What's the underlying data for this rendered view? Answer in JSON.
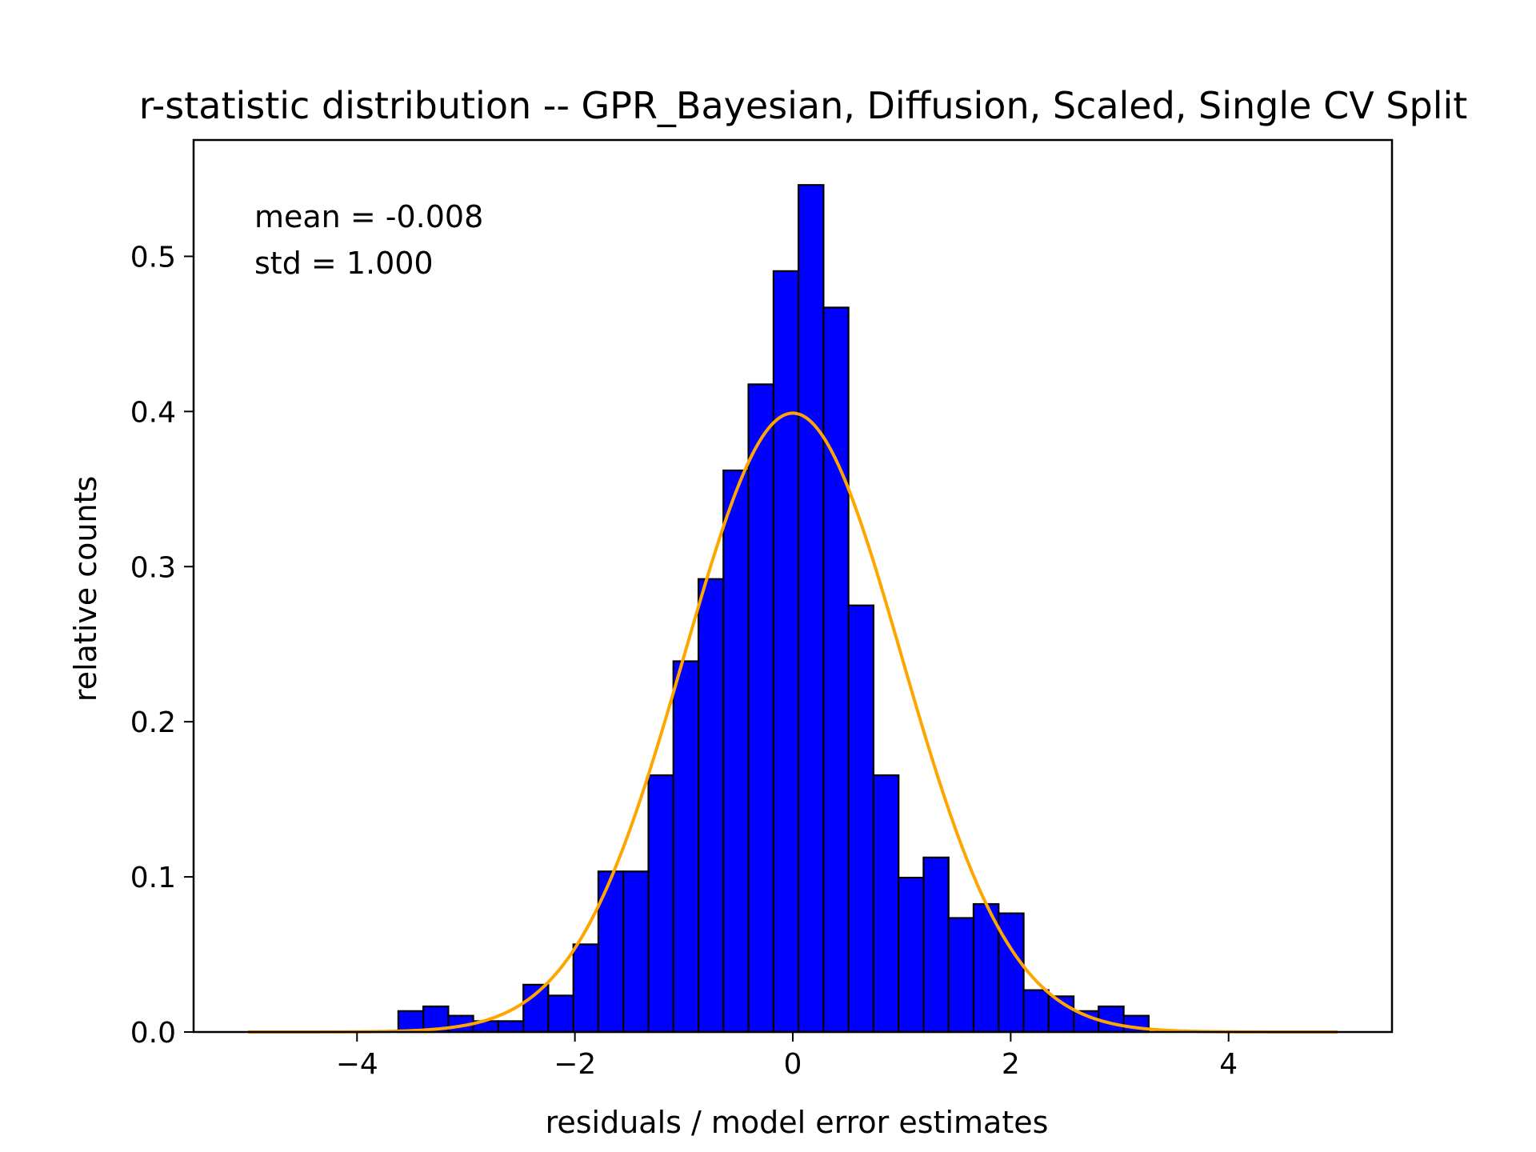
{
  "chart_data": {
    "type": "bar",
    "title": "r-statistic distribution -- GPR_Bayesian, Diffusion, Scaled, Single CV Split",
    "xlabel": "residuals / model error estimates",
    "ylabel": "relative counts",
    "xlim": [
      -5.5,
      5.5
    ],
    "ylim": [
      0,
      0.575
    ],
    "xticks": [
      -4,
      -2,
      0,
      2,
      4
    ],
    "xtick_labels": [
      "−4",
      "−2",
      "0",
      "2",
      "4"
    ],
    "yticks": [
      0.0,
      0.1,
      0.2,
      0.3,
      0.4,
      0.5
    ],
    "ytick_labels": [
      "0.0",
      "0.1",
      "0.2",
      "0.3",
      "0.4",
      "0.5"
    ],
    "annotations": [
      "mean = -0.008",
      "std = 1.000"
    ],
    "histogram": {
      "bar_color": "#0000ff",
      "edge_color": "#000000",
      "bins": [
        {
          "left": -3.621,
          "right": -3.392,
          "value": 0.0135
        },
        {
          "left": -3.392,
          "right": -3.162,
          "value": 0.0165
        },
        {
          "left": -3.162,
          "right": -2.933,
          "value": 0.0105
        },
        {
          "left": -2.933,
          "right": -2.703,
          "value": 0.007
        },
        {
          "left": -2.703,
          "right": -2.473,
          "value": 0.007
        },
        {
          "left": -2.473,
          "right": -2.244,
          "value": 0.0305
        },
        {
          "left": -2.244,
          "right": -2.014,
          "value": 0.0235
        },
        {
          "left": -2.014,
          "right": -1.785,
          "value": 0.0565
        },
        {
          "left": -1.785,
          "right": -1.555,
          "value": 0.1035
        },
        {
          "left": -1.555,
          "right": -1.325,
          "value": 0.1035
        },
        {
          "left": -1.325,
          "right": -1.096,
          "value": 0.1655
        },
        {
          "left": -1.096,
          "right": -0.866,
          "value": 0.239
        },
        {
          "left": -0.866,
          "right": -0.637,
          "value": 0.292
        },
        {
          "left": -0.637,
          "right": -0.407,
          "value": 0.362
        },
        {
          "left": -0.407,
          "right": -0.177,
          "value": 0.4175
        },
        {
          "left": -0.177,
          "right": 0.052,
          "value": 0.4905
        },
        {
          "left": 0.052,
          "right": 0.282,
          "value": 0.546
        },
        {
          "left": 0.282,
          "right": 0.511,
          "value": 0.467
        },
        {
          "left": 0.511,
          "right": 0.741,
          "value": 0.275
        },
        {
          "left": 0.741,
          "right": 0.971,
          "value": 0.1655
        },
        {
          "left": 0.971,
          "right": 1.2,
          "value": 0.0995
        },
        {
          "left": 1.2,
          "right": 1.43,
          "value": 0.1125
        },
        {
          "left": 1.43,
          "right": 1.659,
          "value": 0.0735
        },
        {
          "left": 1.659,
          "right": 1.889,
          "value": 0.0825
        },
        {
          "left": 1.889,
          "right": 2.119,
          "value": 0.0765
        },
        {
          "left": 2.119,
          "right": 2.348,
          "value": 0.027
        },
        {
          "left": 2.348,
          "right": 2.578,
          "value": 0.023
        },
        {
          "left": 2.578,
          "right": 2.807,
          "value": 0.0135
        },
        {
          "left": 2.807,
          "right": 3.037,
          "value": 0.0165
        },
        {
          "left": 3.037,
          "right": 3.267,
          "value": 0.0105
        }
      ]
    },
    "curve": {
      "type": "line",
      "color": "#ffa500",
      "distribution": "standard normal pdf",
      "mean": 0,
      "std": 1,
      "x_range": [
        -5,
        5
      ]
    }
  }
}
